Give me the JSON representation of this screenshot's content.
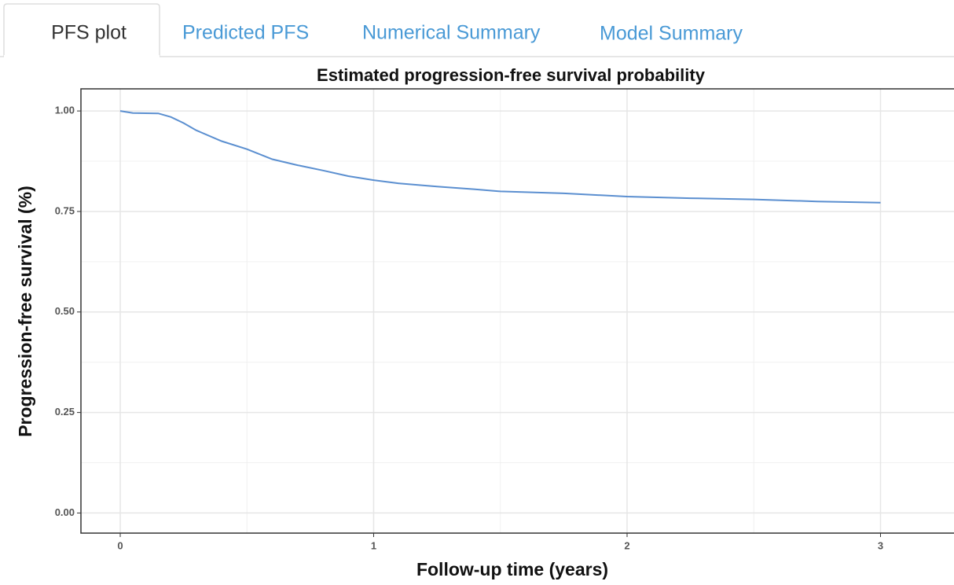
{
  "tabs": [
    "PFS plot",
    "Predicted PFS",
    "Numerical Summary",
    "Model Summary"
  ],
  "active_tab": 0,
  "chart_data": {
    "type": "line",
    "title": "Estimated progression-free survival probability",
    "x_label": "Follow-up time (years)",
    "y_label": "Progression-free survival (%)",
    "x": [
      0,
      0.05,
      0.15,
      0.2,
      0.25,
      0.3,
      0.4,
      0.5,
      0.6,
      0.7,
      0.8,
      0.9,
      1.0,
      1.1,
      1.25,
      1.4,
      1.5,
      1.75,
      2.0,
      2.25,
      2.5,
      2.75,
      3.0
    ],
    "series": [
      {
        "color": "#5b8fd0",
        "values": [
          1.0,
          0.995,
          0.994,
          0.985,
          0.97,
          0.952,
          0.925,
          0.905,
          0.88,
          0.865,
          0.852,
          0.838,
          0.828,
          0.82,
          0.812,
          0.805,
          0.8,
          0.795,
          0.787,
          0.783,
          0.78,
          0.775,
          0.772
        ]
      }
    ],
    "xlim": [
      -0.155,
      3.29
    ],
    "ylim": [
      -0.05,
      1.055
    ],
    "xticks": [
      0,
      1,
      2,
      3
    ],
    "yticks": [
      {
        "value": 0,
        "label": "0.00"
      },
      0.25,
      {
        "value": 0.5,
        "label": "0.50"
      },
      0.75,
      {
        "value": 1,
        "label": "1.00"
      }
    ],
    "grid": true,
    "minor_grid": true
  }
}
